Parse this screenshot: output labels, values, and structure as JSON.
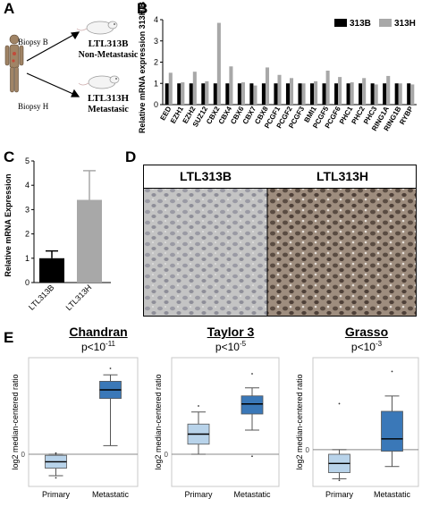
{
  "panels": {
    "A": {
      "letter": "A",
      "biopsy_b_label": "Biopsy B",
      "biopsy_h_label": "Biopsy H",
      "model_b_name": "LTL313B",
      "model_b_desc": "Non-Metastasic",
      "model_h_name": "LTL313H",
      "model_h_desc": "Metastasic"
    },
    "B": {
      "letter": "B"
    },
    "C": {
      "letter": "C"
    },
    "D": {
      "letter": "D",
      "left_label": "LTL313B",
      "right_label": "LTL313H"
    },
    "E": {
      "letter": "E",
      "datasets": [
        {
          "name": "Chandran",
          "pvalue": "p<10",
          "exp": "-11"
        },
        {
          "name": "Taylor 3",
          "pvalue": "p<10",
          "exp": "-5"
        },
        {
          "name": "Grasso",
          "pvalue": "p<10",
          "exp": "-3"
        }
      ]
    }
  },
  "colors": {
    "black": "#000000",
    "gray": "#a8a8a8",
    "box_light": "#b8d3ea",
    "box_dark": "#3a78b8",
    "tissue_b": "#c2c2c2",
    "tissue_h": "#9c8f82"
  },
  "chart_data": [
    {
      "id": "B",
      "type": "bar",
      "ylabel": "Relative mRNA expression 313H/B",
      "ylim": [
        0,
        4
      ],
      "yticks": [
        0,
        1,
        2,
        3,
        4
      ],
      "categories": [
        "EED",
        "EZH1",
        "EZH2",
        "SUZ12",
        "CBX2",
        "CBX4",
        "CBX6",
        "CBX7",
        "CBX8",
        "PCGF1",
        "PCGF2",
        "PCGF3",
        "BMI1",
        "PCGF5",
        "PCGF6",
        "PHC1",
        "PHC2",
        "PHC3",
        "RING1A",
        "RING1B",
        "RYBP"
      ],
      "series": [
        {
          "name": "313B",
          "values": [
            1,
            1,
            1,
            1,
            1,
            1,
            1,
            1,
            1,
            1,
            1,
            1,
            1,
            1,
            1,
            1,
            1,
            1,
            1,
            1,
            1
          ]
        },
        {
          "name": "313H",
          "values": [
            1.5,
            1.05,
            1.55,
            1.1,
            3.85,
            1.8,
            1.05,
            0.9,
            1.75,
            1.4,
            1.25,
            1.0,
            1.1,
            1.6,
            1.3,
            1.05,
            1.25,
            0.95,
            1.35,
            1.0,
            0.95
          ]
        }
      ],
      "legend": "top-right"
    },
    {
      "id": "C",
      "type": "bar",
      "ylabel": "Relative mRNA Expression",
      "ylim": [
        0,
        5
      ],
      "yticks": [
        0,
        1,
        2,
        3,
        4,
        5
      ],
      "categories": [
        "LTL313B",
        "LTL313H"
      ],
      "values": [
        1.0,
        3.4
      ],
      "errors": [
        0.3,
        1.2
      ]
    },
    {
      "id": "E1",
      "type": "box",
      "ylabel": "log2 median-centered ratio",
      "categories": [
        "Primary",
        "Metastatic"
      ],
      "ylim": [
        -1.5,
        4.5
      ],
      "reference": 0,
      "boxes": [
        {
          "whislo": -1.0,
          "q1": -0.65,
          "med": -0.35,
          "q3": -0.05,
          "whishi": 0.0,
          "fliers": [
            -1.1,
            0.05
          ]
        },
        {
          "whislo": 0.4,
          "q1": 2.6,
          "med": 3.0,
          "q3": 3.4,
          "whishi": 3.7,
          "fliers": [
            4.0
          ]
        }
      ]
    },
    {
      "id": "E2",
      "type": "box",
      "ylabel": "log2 median-centered ratio",
      "categories": [
        "Primary",
        "Metastatic"
      ],
      "ylim": [
        -0.8,
        2.4
      ],
      "reference": 0,
      "boxes": [
        {
          "whislo": 0.0,
          "q1": 0.25,
          "med": 0.5,
          "q3": 0.75,
          "whishi": 1.05,
          "fliers": [
            1.2
          ]
        },
        {
          "whislo": 0.6,
          "q1": 1.0,
          "med": 1.25,
          "q3": 1.45,
          "whishi": 1.65,
          "fliers": [
            2.0,
            -0.05
          ]
        }
      ]
    },
    {
      "id": "E3",
      "type": "box",
      "ylabel": "log2 median-centered ratio",
      "categories": [
        "Primary",
        "Metastatic"
      ],
      "ylim": [
        -1.2,
        3.0
      ],
      "reference": 0,
      "boxes": [
        {
          "whislo": -0.95,
          "q1": -0.75,
          "med": -0.45,
          "q3": -0.15,
          "whishi": 0.0,
          "fliers": [
            -1.0,
            1.5
          ]
        },
        {
          "whislo": -0.55,
          "q1": -0.05,
          "med": 0.35,
          "q3": 1.25,
          "whishi": 1.75,
          "fliers": [
            2.55
          ]
        }
      ]
    }
  ]
}
